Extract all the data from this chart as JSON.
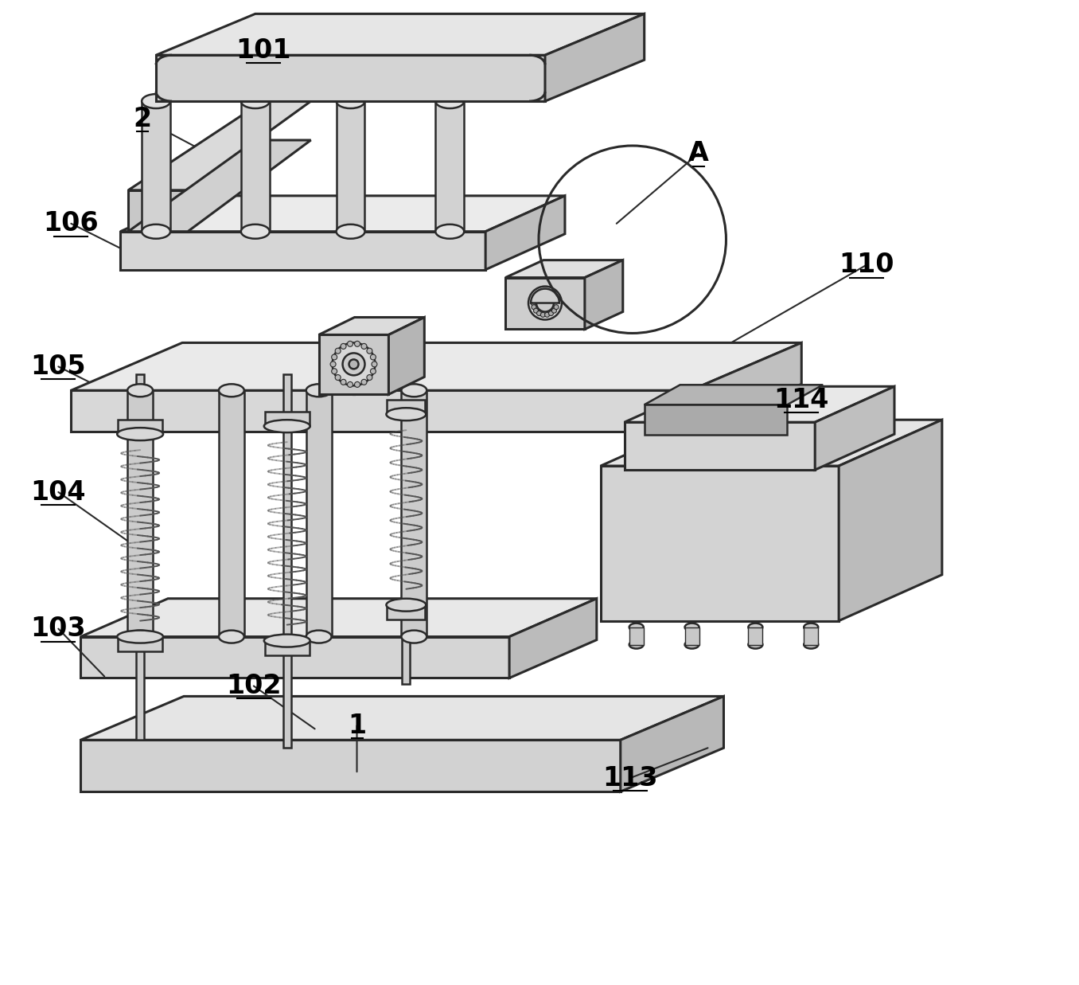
{
  "bg_color": "#ffffff",
  "lc": "#2a2a2a",
  "lw_main": 1.8,
  "lw_thick": 2.2,
  "figsize": [
    13.56,
    12.37
  ],
  "dpi": 100,
  "colors": {
    "top_face": "#e8e8e8",
    "front_face": "#d0d0d0",
    "right_face": "#b8b8b8",
    "dark_face": "#a0a0a0",
    "spring_col": "#555555",
    "gear_col": "#c0c0c0"
  },
  "labels": [
    [
      "101",
      330,
      62,
      420,
      92
    ],
    [
      "2",
      178,
      148,
      295,
      210
    ],
    [
      "106",
      88,
      280,
      160,
      316
    ],
    [
      "105",
      72,
      460,
      172,
      510
    ],
    [
      "104",
      72,
      618,
      160,
      680
    ],
    [
      "103",
      72,
      790,
      130,
      850
    ],
    [
      "102",
      318,
      862,
      395,
      916
    ],
    [
      "1",
      448,
      912,
      448,
      970
    ],
    [
      "113",
      792,
      978,
      890,
      940
    ],
    [
      "114",
      1008,
      502,
      858,
      494
    ],
    [
      "110",
      1090,
      332,
      860,
      464
    ],
    [
      "A",
      878,
      192,
      775,
      280
    ]
  ]
}
